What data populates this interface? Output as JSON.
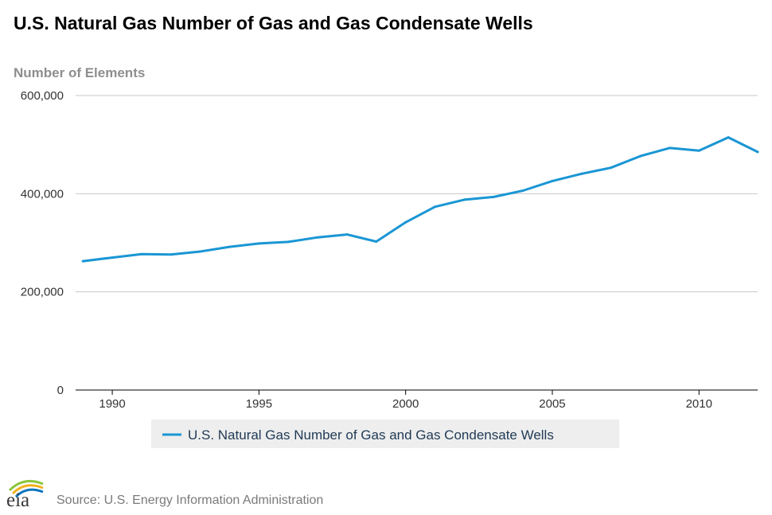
{
  "title": "U.S. Natural Gas Number of Gas and Gas Condensate Wells",
  "source": "Source: U.S. Energy Information Administration",
  "logo_text": "eia",
  "colors": {
    "series": "#1a96d4",
    "gridline": "#c8c8c8",
    "axis": "#000000",
    "legend_bg": "#eeeeee"
  },
  "chart_data": {
    "type": "line",
    "title": "U.S. Natural Gas Number of Gas and Gas Condensate Wells",
    "xlabel": "",
    "ylabel": "Number of Elements",
    "xlim": [
      1988.75,
      2012
    ],
    "ylim": [
      0,
      600000
    ],
    "grid": true,
    "legend_position": "bottom-center",
    "x_ticks": [
      1990,
      1995,
      2000,
      2005,
      2010
    ],
    "x_tick_labels": [
      "1990",
      "1995",
      "2000",
      "2005",
      "2010"
    ],
    "y_ticks": [
      0,
      200000,
      400000,
      600000
    ],
    "y_tick_labels": [
      "0",
      "200,000",
      "400,000",
      "600,000"
    ],
    "series": [
      {
        "name": "U.S. Natural Gas Number of Gas and Gas Condensate Wells",
        "x": [
          1989,
          1990,
          1991,
          1992,
          1993,
          1994,
          1995,
          1996,
          1997,
          1998,
          1999,
          2000,
          2001,
          2002,
          2003,
          2004,
          2005,
          2006,
          2007,
          2008,
          2009,
          2010,
          2011,
          2012
        ],
        "values": [
          262483,
          269790,
          276987,
          276014,
          282152,
          291773,
          298541,
          301811,
          310971,
          316929,
          302421,
          341678,
          373304,
          387772,
          393327,
          406147,
          425887,
          440516,
          452945,
          476652,
          493100,
          487627,
          514637,
          484994
        ]
      }
    ]
  }
}
